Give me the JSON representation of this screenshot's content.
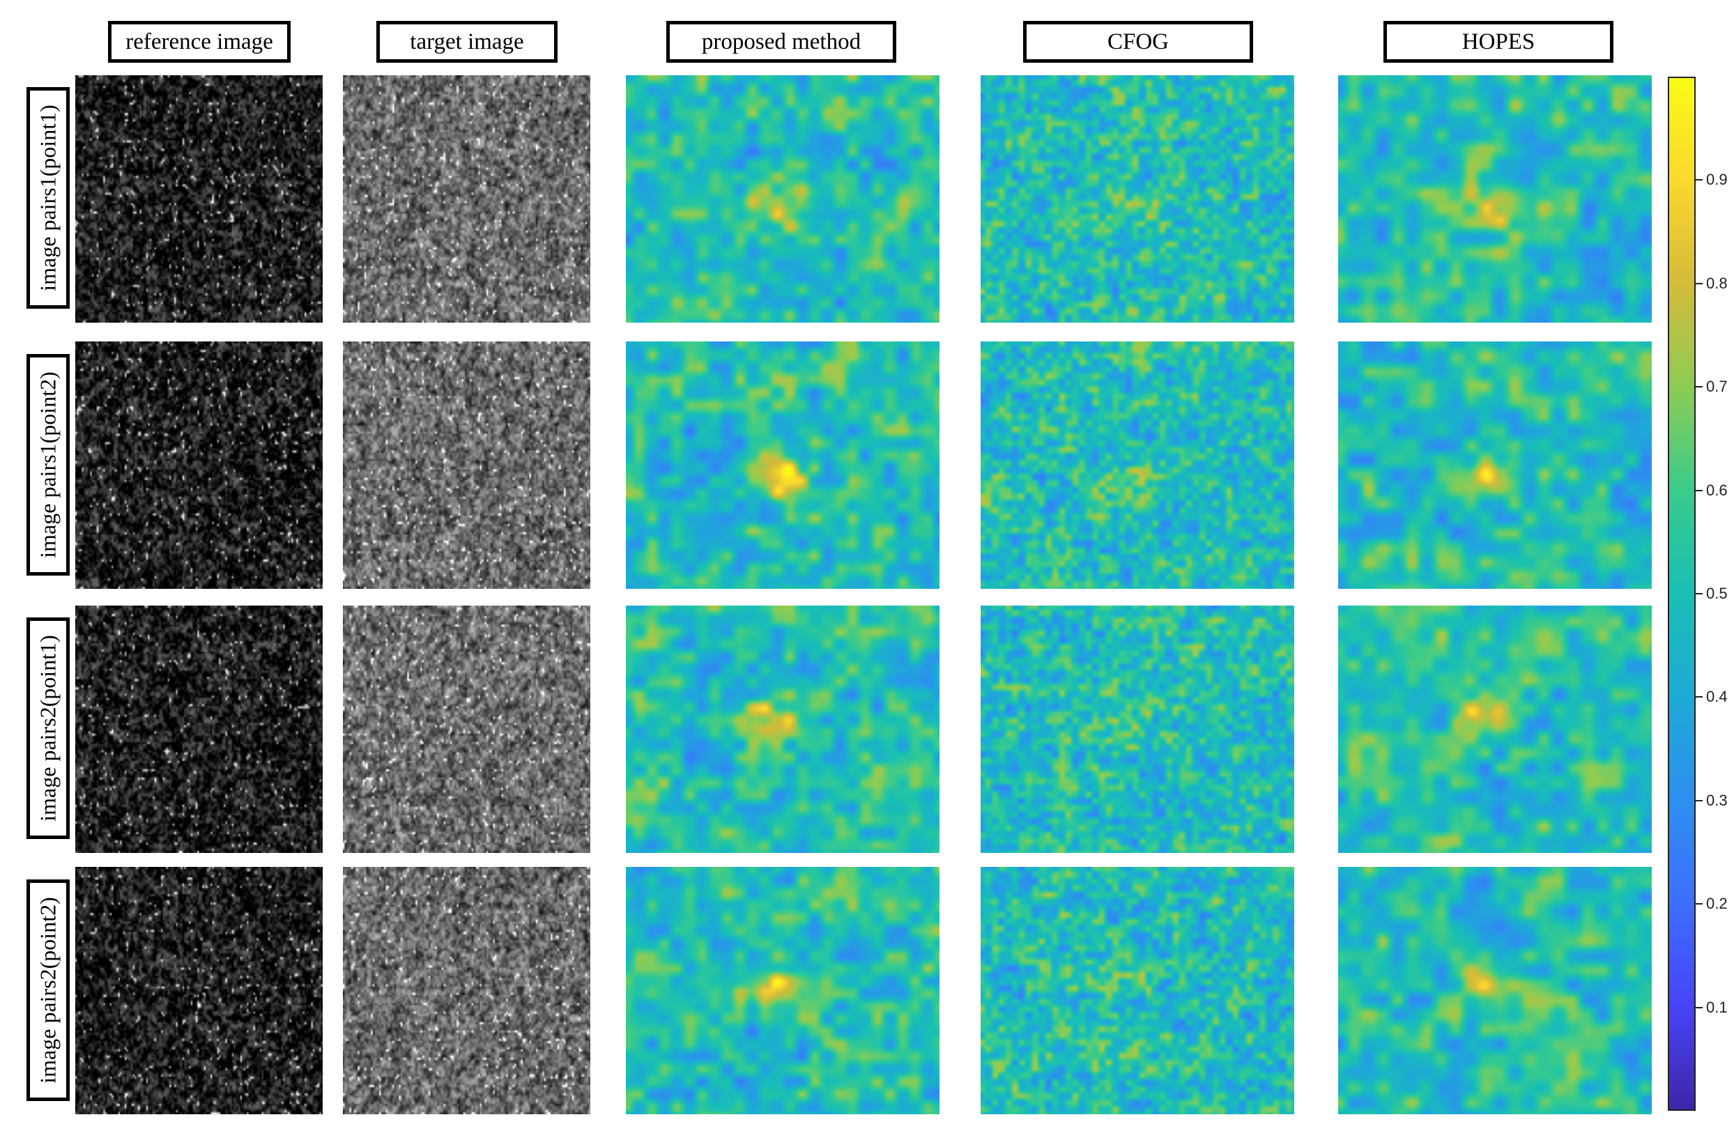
{
  "columns": [
    {
      "label": "reference image"
    },
    {
      "label": "target image"
    },
    {
      "label": "proposed method"
    },
    {
      "label": "CFOG"
    },
    {
      "label": "HOPES"
    }
  ],
  "rows": [
    {
      "label": "image pairs1(point1)"
    },
    {
      "label": "image pairs1(point2)"
    },
    {
      "label": "image pairs2(point1)"
    },
    {
      "label": "image pairs2(point2)"
    }
  ],
  "colorbar": {
    "min": 0,
    "max": 1,
    "colormap": "parula",
    "ticks": [
      "0.1",
      "0.2",
      "0.3",
      "0.4",
      "0.5",
      "0.6",
      "0.7",
      "0.8",
      "0.9"
    ]
  },
  "panel_style": {
    "sar_colors": [
      "#000000",
      "#ffffff"
    ],
    "heatmap_colors": [
      "#3e26a8",
      "#4743f8",
      "#2d8fef",
      "#19bfb4",
      "#8ccc54",
      "#fbd82e",
      "#f9fb15"
    ]
  }
}
